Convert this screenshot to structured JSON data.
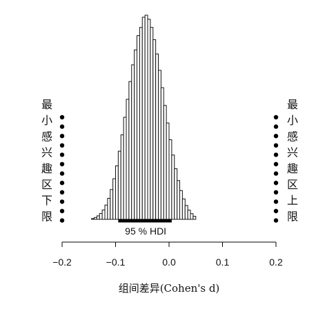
{
  "chart_data": {
    "type": "bar",
    "title": "",
    "xlabel": "组间差异(Cohen's d)",
    "ylabel": "",
    "xlim": [
      -0.2,
      0.2
    ],
    "xticks": [
      -0.2,
      -0.1,
      0.0,
      0.1,
      0.2
    ],
    "xtick_labels": [
      "−0.2",
      "−0.1",
      "0.0",
      "0.1",
      "0.2"
    ],
    "bin_width": 0.005,
    "bins": [
      {
        "x": -0.1425,
        "density": 0.004
      },
      {
        "x": -0.1375,
        "density": 0.009
      },
      {
        "x": -0.1325,
        "density": 0.017
      },
      {
        "x": -0.1275,
        "density": 0.029
      },
      {
        "x": -0.1225,
        "density": 0.046
      },
      {
        "x": -0.1175,
        "density": 0.07
      },
      {
        "x": -0.1125,
        "density": 0.103
      },
      {
        "x": -0.1075,
        "density": 0.146
      },
      {
        "x": -0.1025,
        "density": 0.199
      },
      {
        "x": -0.0975,
        "density": 0.262
      },
      {
        "x": -0.0925,
        "density": 0.334
      },
      {
        "x": -0.0875,
        "density": 0.414
      },
      {
        "x": -0.0825,
        "density": 0.5
      },
      {
        "x": -0.0775,
        "density": 0.588
      },
      {
        "x": -0.0725,
        "density": 0.675
      },
      {
        "x": -0.0675,
        "density": 0.757
      },
      {
        "x": -0.0625,
        "density": 0.83
      },
      {
        "x": -0.0575,
        "density": 0.9
      },
      {
        "x": -0.0525,
        "density": 0.94
      },
      {
        "x": -0.0475,
        "density": 0.99
      },
      {
        "x": -0.0425,
        "density": 1.0
      },
      {
        "x": -0.0375,
        "density": 0.98
      },
      {
        "x": -0.0325,
        "density": 0.94
      },
      {
        "x": -0.0275,
        "density": 0.88
      },
      {
        "x": -0.0225,
        "density": 0.81
      },
      {
        "x": -0.0175,
        "density": 0.73
      },
      {
        "x": -0.0125,
        "density": 0.645
      },
      {
        "x": -0.0075,
        "density": 0.558
      },
      {
        "x": -0.0025,
        "density": 0.472
      },
      {
        "x": 0.0025,
        "density": 0.39
      },
      {
        "x": 0.0075,
        "density": 0.315
      },
      {
        "x": 0.0125,
        "density": 0.248
      },
      {
        "x": 0.0175,
        "density": 0.19
      },
      {
        "x": 0.0225,
        "density": 0.141
      },
      {
        "x": 0.0275,
        "density": 0.1
      },
      {
        "x": 0.0325,
        "density": 0.068
      },
      {
        "x": 0.0375,
        "density": 0.045
      },
      {
        "x": 0.0425,
        "density": 0.028
      },
      {
        "x": 0.0475,
        "density": 0.015
      }
    ],
    "hdi": {
      "label": "95 % HDI",
      "low": -0.095,
      "high": 0.005
    },
    "rope_lower": {
      "label": "最小感兴趣区下限",
      "chars": [
        "最",
        "小",
        "感",
        "兴",
        "趣",
        "区",
        "下",
        "限"
      ],
      "x": -0.2
    },
    "rope_upper": {
      "label": "最小感兴趣区上限",
      "chars": [
        "最",
        "小",
        "感",
        "兴",
        "趣",
        "区",
        "上",
        "限"
      ],
      "x": 0.2
    },
    "grid": false,
    "legend": "none"
  }
}
